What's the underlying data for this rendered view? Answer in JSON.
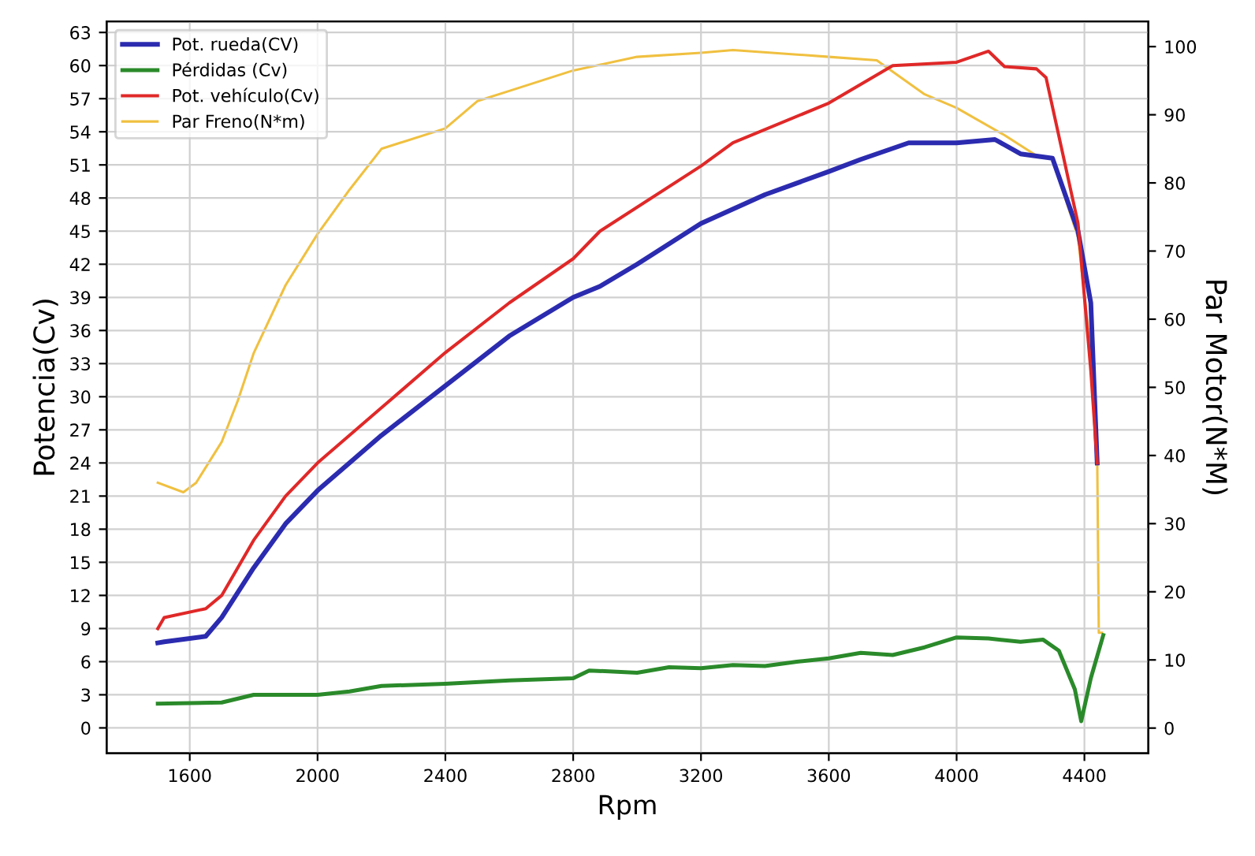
{
  "chart_data": {
    "type": "line",
    "xlabel": "Rpm",
    "ylabel": "Potencia(Cv)",
    "y2label": "Par Motor(N*M)",
    "xlim": [
      1340,
      4600
    ],
    "xticks": [
      1600,
      2000,
      2400,
      2800,
      3200,
      3600,
      4000,
      4400
    ],
    "ylim": [
      -2.3,
      64
    ],
    "yticks": [
      0,
      3,
      6,
      9,
      12,
      15,
      18,
      21,
      24,
      27,
      30,
      33,
      36,
      39,
      42,
      45,
      48,
      51,
      54,
      57,
      60,
      63
    ],
    "y2lim": [
      -3.7,
      103.7
    ],
    "y2ticks": [
      0,
      10,
      20,
      30,
      40,
      50,
      60,
      70,
      80,
      90,
      100
    ],
    "grid": true,
    "legend": "top left",
    "line_style": "solid",
    "marker": "none",
    "series": [
      {
        "name": "Pot. rueda(CV)",
        "color": "#2b2bb0",
        "x": [
          1500,
          1520,
          1650,
          1700,
          1800,
          1900,
          2000,
          2100,
          2200,
          2400,
          2600,
          2800,
          2884,
          3000,
          3200,
          3400,
          3600,
          3700,
          3850,
          4000,
          4120,
          4200,
          4300,
          4380,
          4420,
          4440
        ],
        "values": [
          7.7,
          7.8,
          8.3,
          10,
          14.5,
          18.5,
          21.5,
          24,
          26.5,
          31,
          35.5,
          39,
          40,
          42,
          45.7,
          48.3,
          50.4,
          51.5,
          53,
          53,
          53.3,
          52,
          51.6,
          45,
          38.5,
          24
        ]
      },
      {
        "name": "Pérdidas (Cv)",
        "color": "#2a8a2a",
        "x": [
          1500,
          1700,
          1800,
          2000,
          2100,
          2200,
          2400,
          2600,
          2800,
          2850,
          3000,
          3100,
          3200,
          3300,
          3400,
          3500,
          3600,
          3700,
          3800,
          3900,
          4000,
          4100,
          4200,
          4270,
          4320,
          4370,
          4390,
          4420,
          4459
        ],
        "values": [
          2.2,
          2.3,
          3,
          3,
          3.3,
          3.8,
          4,
          4.3,
          4.5,
          5.2,
          5,
          5.5,
          5.4,
          5.7,
          5.6,
          6,
          6.3,
          6.8,
          6.6,
          7.3,
          8.2,
          8.1,
          7.8,
          8,
          7,
          3.5,
          0.6,
          4.5,
          8.4
        ]
      },
      {
        "name": "Pot. vehículo(Cv)",
        "color": "#e02828",
        "x": [
          1500,
          1520,
          1650,
          1700,
          1800,
          1900,
          2000,
          2200,
          2400,
          2600,
          2800,
          2884,
          3200,
          3300,
          3600,
          3800,
          4000,
          4100,
          4150,
          4250,
          4280,
          4380,
          4420,
          4440
        ],
        "values": [
          9,
          10,
          10.8,
          12,
          17,
          21,
          24,
          29,
          34,
          38.5,
          42.5,
          45,
          50.9,
          53,
          56.6,
          60,
          60.3,
          61.3,
          59.9,
          59.7,
          58.9,
          45.7,
          32.4,
          24
        ]
      },
      {
        "name": "Par Freno(N*m)",
        "color": "#f0c040",
        "axis": "y2",
        "x": [
          1500,
          1580,
          1620,
          1700,
          1750,
          1800,
          1900,
          2000,
          2100,
          2200,
          2400,
          2500,
          2600,
          2800,
          3000,
          3200,
          3300,
          3600,
          3750,
          3900,
          4000,
          4150,
          4250,
          4300,
          4380,
          4420,
          4440,
          4445,
          4455
        ],
        "values": [
          36,
          34.6,
          36,
          42,
          48,
          55,
          65,
          72.5,
          79,
          85,
          88,
          92,
          93.5,
          96.5,
          98.5,
          99.1,
          99.5,
          98.5,
          98,
          93,
          91,
          87,
          84,
          83.5,
          72,
          55,
          40,
          14,
          14
        ]
      }
    ]
  }
}
